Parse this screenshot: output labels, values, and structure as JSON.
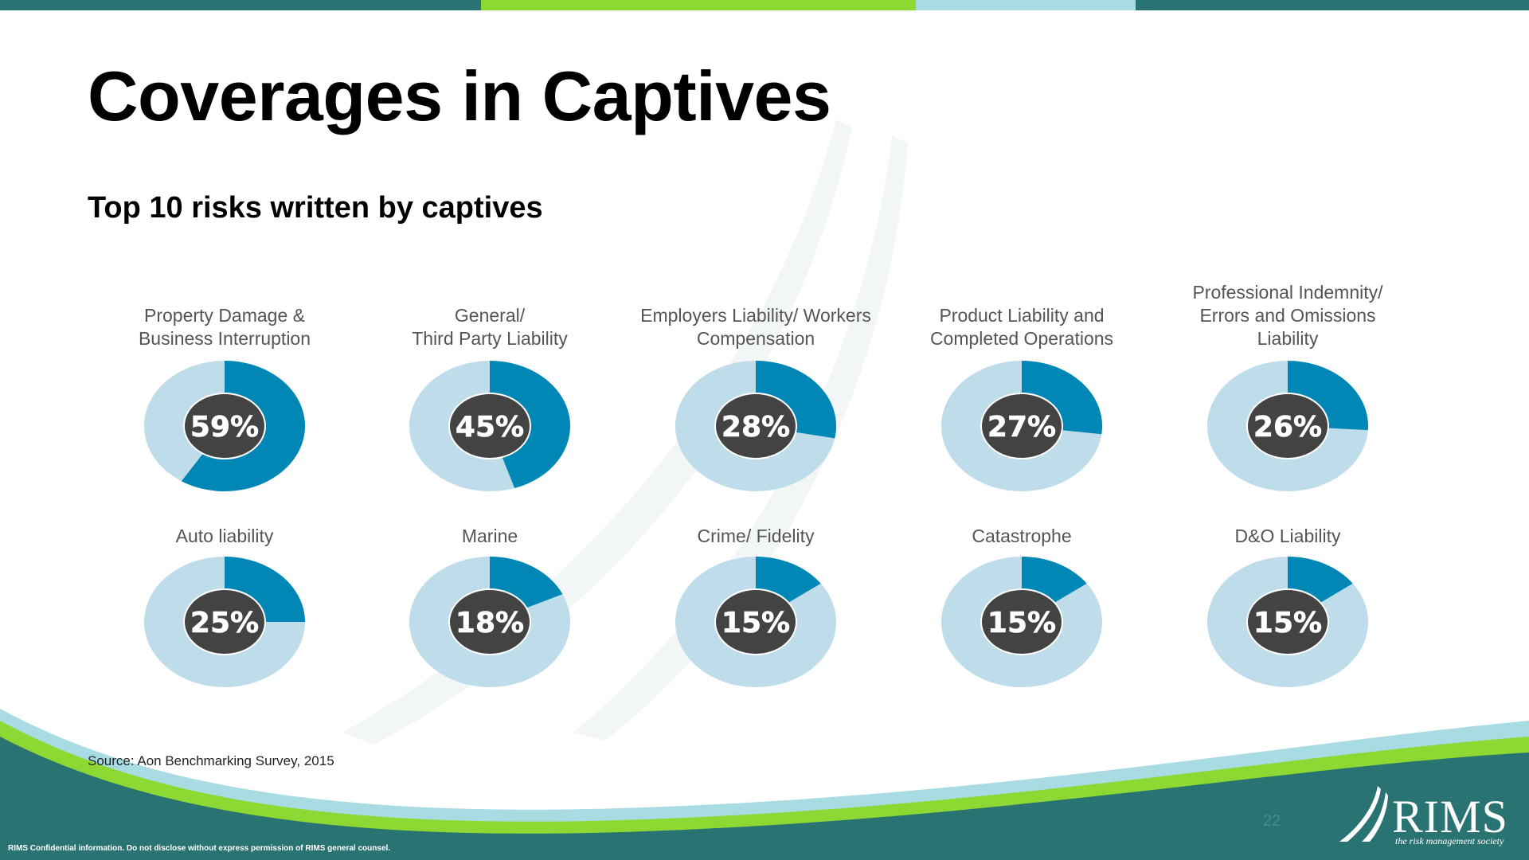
{
  "slide": {
    "title": "Coverages in Captives",
    "subtitle": "Top 10 risks written by captives",
    "source": "Source: Aon Benchmarking Survey, 2015",
    "page_number": "22",
    "confidential": "RIMS Confidential information. Do not disclose without express permission of RIMS general counsel.",
    "logo_text": "RIMS",
    "logo_tagline": "the risk management society"
  },
  "colors": {
    "accent": "#0187b5",
    "remainder": "#bfdcea",
    "center": "#434343",
    "teal_band": "#2a7373",
    "green_band": "#8dd832",
    "light_blue_band": "#a9dbe3"
  },
  "chart_data": {
    "type": "pie",
    "variant": "donut",
    "title": "Top 10 risks written by captives",
    "items": [
      {
        "label_lines": [
          "Property Damage &",
          "Business Interruption"
        ],
        "value": 59,
        "display": "59%"
      },
      {
        "label_lines": [
          "General/",
          "Third Party Liability"
        ],
        "value": 45,
        "display": "45%"
      },
      {
        "label_lines": [
          "Employers Liability/ Workers",
          "Compensation"
        ],
        "value": 28,
        "display": "28%"
      },
      {
        "label_lines": [
          "Product Liability and",
          "Completed Operations"
        ],
        "value": 27,
        "display": "27%"
      },
      {
        "label_lines": [
          "Professional Indemnity/",
          "Errors and Omissions",
          "Liability"
        ],
        "value": 26,
        "display": "26%"
      },
      {
        "label_lines": [
          "Auto liability"
        ],
        "value": 25,
        "display": "25%"
      },
      {
        "label_lines": [
          "Marine"
        ],
        "value": 18,
        "display": "18%"
      },
      {
        "label_lines": [
          "Crime/ Fidelity"
        ],
        "value": 15,
        "display": "15%"
      },
      {
        "label_lines": [
          "Catastrophe"
        ],
        "value": 15,
        "display": "15%"
      },
      {
        "label_lines": [
          "D&O Liability"
        ],
        "value": 15,
        "display": "15%"
      }
    ]
  }
}
